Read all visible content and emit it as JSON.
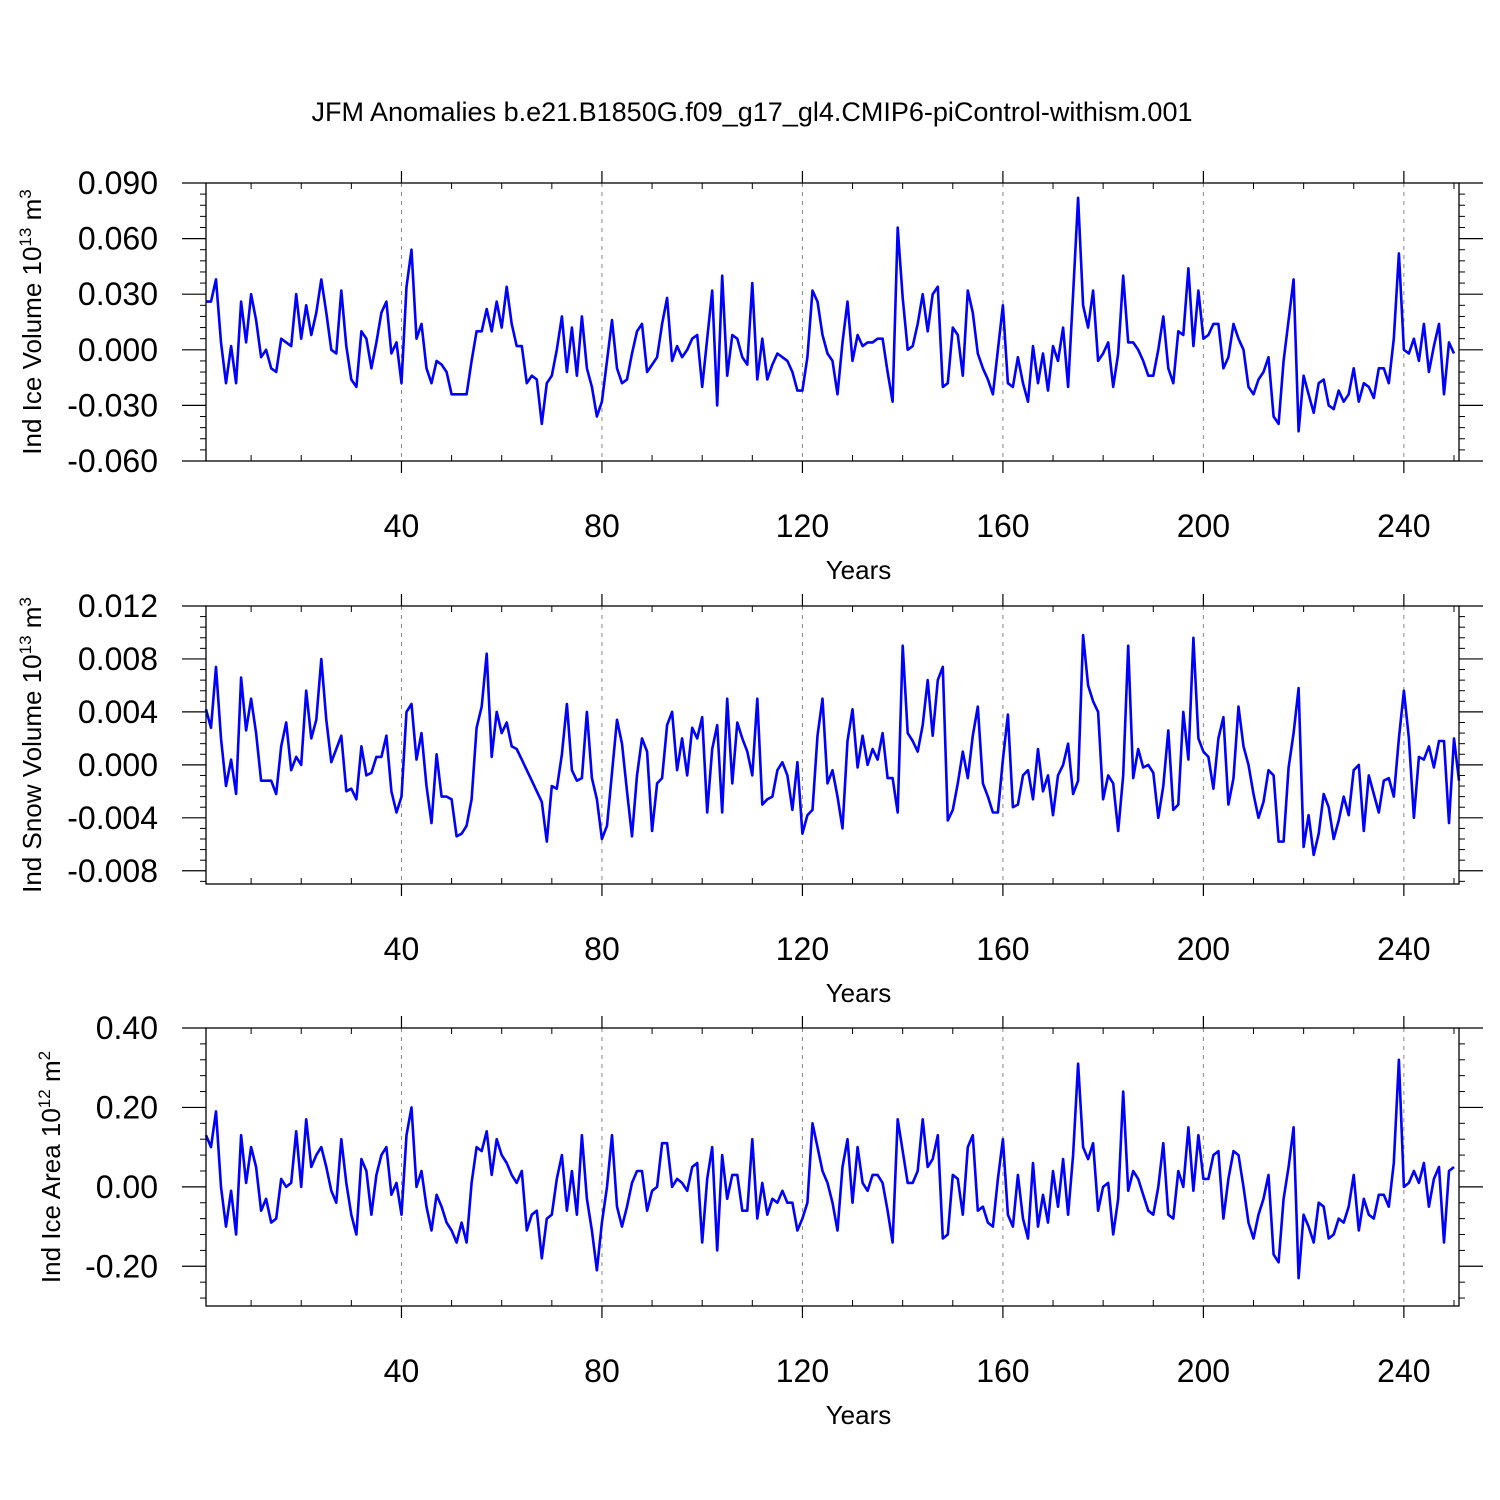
{
  "title": "JFM Anomalies b.e21.B1850G.f09_g17_gl4.CMIP6-piControl-withism.001",
  "chart_data": [
    {
      "type": "line",
      "title": "JFM Anomalies b.e21.B1850G.f09_g17_gl4.CMIP6-piControl-withism.001",
      "xlabel": "Years",
      "ylabel": {
        "main": "Ind Ice Volume 10",
        "exp": "13",
        "unit": " m",
        "unit_exp": "3"
      },
      "xlim": [
        1,
        251
      ],
      "ylim": [
        -0.06,
        0.09
      ],
      "xticks": [
        40,
        80,
        120,
        160,
        200,
        240
      ],
      "xtick_labels": [
        "40",
        "80",
        "120",
        "160",
        "200",
        "240"
      ],
      "yticks": [
        -0.06,
        -0.03,
        0.0,
        0.03,
        0.06,
        0.09
      ],
      "ytick_labels": [
        "-0.060",
        "-0.030",
        "0.000",
        "0.030",
        "0.060",
        "0.090"
      ],
      "grid": "vertical dashed at major x ticks",
      "color": "#0000ff",
      "series": [
        {
          "name": "Ind Ice Volume",
          "values": [
            0.026,
            0.026,
            0.038,
            0.004,
            -0.018,
            0.002,
            -0.018,
            0.026,
            0.004,
            0.03,
            0.016,
            -0.004,
            0.0,
            -0.01,
            -0.012,
            0.006,
            0.004,
            0.002,
            0.03,
            0.006,
            0.024,
            0.008,
            0.02,
            0.038,
            0.02,
            0.0,
            -0.002,
            0.032,
            0.002,
            -0.016,
            -0.02,
            0.01,
            0.006,
            -0.01,
            0.004,
            0.02,
            0.026,
            -0.002,
            0.004,
            -0.018,
            0.034,
            0.054,
            0.006,
            0.014,
            -0.01,
            -0.018,
            -0.006,
            -0.008,
            -0.012,
            -0.024,
            -0.024,
            -0.024,
            -0.024,
            -0.006,
            0.01,
            0.01,
            0.022,
            0.01,
            0.026,
            0.012,
            0.034,
            0.014,
            0.002,
            0.002,
            -0.018,
            -0.014,
            -0.016,
            -0.04,
            -0.018,
            -0.014,
            0.0,
            0.018,
            -0.012,
            0.012,
            -0.014,
            0.018,
            -0.01,
            -0.02,
            -0.036,
            -0.028,
            -0.006,
            0.016,
            -0.01,
            -0.018,
            -0.016,
            -0.002,
            0.01,
            0.014,
            -0.012,
            -0.008,
            -0.004,
            0.014,
            0.028,
            -0.006,
            0.002,
            -0.004,
            0.0,
            0.006,
            0.008,
            -0.02,
            0.006,
            0.032,
            -0.03,
            0.04,
            -0.014,
            0.008,
            0.006,
            -0.004,
            -0.008,
            0.036,
            -0.016,
            0.006,
            -0.016,
            -0.008,
            -0.002,
            -0.004,
            -0.006,
            -0.012,
            -0.022,
            -0.022,
            -0.004,
            0.032,
            0.026,
            0.008,
            -0.002,
            -0.006,
            -0.024,
            0.004,
            0.026,
            -0.006,
            0.008,
            0.002,
            0.004,
            0.004,
            0.006,
            0.006,
            -0.012,
            -0.028,
            0.066,
            0.028,
            0.0,
            0.002,
            0.014,
            0.03,
            0.01,
            0.03,
            0.034,
            -0.02,
            -0.018,
            0.012,
            0.008,
            -0.014,
            0.032,
            0.02,
            -0.002,
            -0.01,
            -0.016,
            -0.024,
            0.0,
            0.024,
            -0.018,
            -0.02,
            -0.004,
            -0.018,
            -0.028,
            0.002,
            -0.018,
            -0.002,
            -0.022,
            0.002,
            -0.006,
            0.012,
            -0.02,
            0.03,
            0.082,
            0.024,
            0.012,
            0.032,
            -0.006,
            -0.002,
            0.004,
            -0.02,
            -0.002,
            0.04,
            0.004,
            0.004,
            0.0,
            -0.006,
            -0.014,
            -0.014,
            0.0,
            0.018,
            -0.01,
            -0.018,
            0.01,
            0.008,
            0.044,
            0.002,
            0.032,
            0.006,
            0.008,
            0.014,
            0.014,
            -0.01,
            -0.004,
            0.014,
            0.006,
            0.0,
            -0.02,
            -0.024,
            -0.016,
            -0.012,
            -0.004,
            -0.036,
            -0.04,
            -0.006,
            0.016,
            0.038,
            -0.044,
            -0.014,
            -0.024,
            -0.034,
            -0.018,
            -0.016,
            -0.03,
            -0.032,
            -0.022,
            -0.028,
            -0.024,
            -0.01,
            -0.028,
            -0.018,
            -0.02,
            -0.026,
            -0.01,
            -0.01,
            -0.018,
            0.006,
            0.052,
            0.0,
            -0.002,
            0.006,
            -0.006,
            0.014,
            -0.012,
            0.002,
            0.014,
            -0.024,
            0.004,
            -0.002
          ]
        }
      ]
    },
    {
      "type": "line",
      "xlabel": "Years",
      "ylabel": {
        "main": "Ind Snow Volume 10",
        "exp": "13",
        "unit": " m",
        "unit_exp": "3"
      },
      "xlim": [
        1,
        251
      ],
      "ylim": [
        -0.009,
        0.012
      ],
      "xticks": [
        40,
        80,
        120,
        160,
        200,
        240
      ],
      "xtick_labels": [
        "40",
        "80",
        "120",
        "160",
        "200",
        "240"
      ],
      "yticks": [
        -0.008,
        -0.004,
        0.0,
        0.004,
        0.008,
        0.012
      ],
      "ytick_labels": [
        "-0.008",
        "-0.004",
        "0.000",
        "0.004",
        "0.008",
        "0.012"
      ],
      "grid": "vertical dashed at major x ticks",
      "color": "#0000ff",
      "series": [
        {
          "name": "Ind Snow Volume",
          "values": [
            0.0042,
            0.0028,
            0.0074,
            0.002,
            -0.0016,
            0.0004,
            -0.0022,
            0.0066,
            0.0026,
            0.005,
            0.0024,
            -0.0012,
            -0.0012,
            -0.0012,
            -0.0022,
            0.0014,
            0.0032,
            -0.0004,
            0.0006,
            0.0,
            0.0056,
            0.002,
            0.0034,
            0.008,
            0.0034,
            0.0002,
            0.0012,
            0.0022,
            -0.002,
            -0.0018,
            -0.0026,
            0.0014,
            -0.0008,
            -0.0006,
            0.0006,
            0.0006,
            0.0022,
            -0.002,
            -0.0036,
            -0.0024,
            0.004,
            0.0046,
            0.0004,
            0.0024,
            -0.0016,
            -0.0044,
            0.0008,
            -0.0024,
            -0.0024,
            -0.0026,
            -0.0054,
            -0.0052,
            -0.0046,
            -0.0026,
            0.0028,
            0.0044,
            0.0084,
            0.0006,
            0.004,
            0.0024,
            0.0032,
            0.0014,
            0.0012,
            0.0004,
            -0.0004,
            -0.0012,
            -0.002,
            -0.0028,
            -0.0058,
            -0.0016,
            -0.0018,
            0.0008,
            0.0046,
            -0.0004,
            -0.0012,
            -0.001,
            0.004,
            -0.001,
            -0.0026,
            -0.0056,
            -0.0046,
            -0.0006,
            0.0034,
            0.0016,
            -0.002,
            -0.0054,
            -0.0008,
            0.002,
            0.001,
            -0.005,
            -0.0014,
            -0.001,
            0.003,
            0.004,
            -0.0004,
            0.002,
            -0.0008,
            0.0028,
            0.002,
            0.0036,
            -0.0036,
            0.0012,
            0.003,
            -0.0036,
            0.005,
            -0.0014,
            0.0032,
            0.002,
            0.001,
            -0.0008,
            0.005,
            -0.003,
            -0.0026,
            -0.0024,
            -0.0004,
            0.0002,
            -0.0008,
            -0.0034,
            0.0002,
            -0.0052,
            -0.0038,
            -0.0034,
            0.0022,
            0.005,
            -0.0014,
            -0.0004,
            -0.0024,
            -0.0048,
            0.0018,
            0.0042,
            -0.0002,
            0.0022,
            0.0,
            0.0012,
            0.0004,
            0.0024,
            -0.001,
            -0.001,
            -0.0036,
            0.009,
            0.0024,
            0.0018,
            0.001,
            0.003,
            0.0064,
            0.0022,
            0.0064,
            0.0074,
            -0.0042,
            -0.0034,
            -0.0014,
            0.001,
            -0.001,
            0.0022,
            0.0044,
            -0.0014,
            -0.0024,
            -0.0036,
            -0.0036,
            0.0004,
            0.0038,
            -0.0032,
            -0.003,
            -0.0008,
            -0.0004,
            -0.0026,
            0.0012,
            -0.002,
            -0.0008,
            -0.0038,
            -0.0008,
            0.0,
            0.0016,
            -0.0022,
            -0.0012,
            0.0098,
            0.006,
            0.0048,
            0.004,
            -0.0026,
            -0.0008,
            -0.0014,
            -0.005,
            -0.0008,
            0.009,
            -0.001,
            0.0012,
            -0.0002,
            0.0,
            -0.0006,
            -0.004,
            -0.0016,
            0.0026,
            -0.0034,
            -0.003,
            0.004,
            0.0004,
            0.0096,
            0.002,
            0.001,
            0.0006,
            -0.0018,
            0.002,
            0.0036,
            -0.003,
            -0.001,
            0.0044,
            0.0014,
            0.0,
            -0.0022,
            -0.004,
            -0.0028,
            -0.0004,
            -0.0008,
            -0.0058,
            -0.0058,
            -0.0002,
            0.0024,
            0.0058,
            -0.0062,
            -0.0038,
            -0.0068,
            -0.0052,
            -0.0022,
            -0.0032,
            -0.0056,
            -0.0042,
            -0.0024,
            -0.0038,
            -0.0004,
            0.0,
            -0.005,
            -0.0008,
            -0.0022,
            -0.0036,
            -0.0012,
            -0.001,
            -0.0024,
            0.002,
            0.0056,
            0.002,
            -0.004,
            0.0006,
            0.0004,
            0.0014,
            -0.0002,
            0.0018,
            0.0018,
            -0.0044,
            0.002,
            -0.0012
          ]
        }
      ]
    },
    {
      "type": "line",
      "xlabel": "Years",
      "ylabel": {
        "main": "Ind Ice Area 10",
        "exp": "12",
        "unit": " m",
        "unit_exp": "2"
      },
      "xlim": [
        1,
        251
      ],
      "ylim": [
        -0.3,
        0.4
      ],
      "xticks": [
        40,
        80,
        120,
        160,
        200,
        240
      ],
      "xtick_labels": [
        "40",
        "80",
        "120",
        "160",
        "200",
        "240"
      ],
      "yticks": [
        -0.2,
        0.0,
        0.2,
        0.4
      ],
      "ytick_labels": [
        "-0.20",
        "0.00",
        "0.20",
        "0.40"
      ],
      "grid": "vertical dashed at major x ticks",
      "color": "#0000ff",
      "series": [
        {
          "name": "Ind Ice Area",
          "values": [
            0.13,
            0.1,
            0.19,
            0.0,
            -0.1,
            -0.01,
            -0.12,
            0.13,
            0.01,
            0.1,
            0.05,
            -0.06,
            -0.03,
            -0.09,
            -0.08,
            0.02,
            0.0,
            0.01,
            0.14,
            0.0,
            0.17,
            0.05,
            0.08,
            0.1,
            0.05,
            -0.01,
            -0.04,
            0.12,
            0.01,
            -0.07,
            -0.12,
            0.07,
            0.04,
            -0.07,
            0.03,
            0.08,
            0.1,
            -0.02,
            0.01,
            -0.07,
            0.13,
            0.2,
            0.0,
            0.04,
            -0.05,
            -0.11,
            -0.02,
            -0.05,
            -0.09,
            -0.11,
            -0.14,
            -0.09,
            -0.14,
            0.01,
            0.1,
            0.09,
            0.14,
            0.03,
            0.12,
            0.08,
            0.06,
            0.03,
            0.01,
            0.04,
            -0.11,
            -0.07,
            -0.06,
            -0.18,
            -0.08,
            -0.07,
            0.02,
            0.08,
            -0.06,
            0.04,
            -0.07,
            0.13,
            -0.03,
            -0.11,
            -0.21,
            -0.09,
            0.0,
            0.13,
            -0.05,
            -0.1,
            -0.05,
            0.01,
            0.04,
            0.04,
            -0.06,
            -0.01,
            0.0,
            0.11,
            0.11,
            0.0,
            0.02,
            0.01,
            -0.01,
            0.05,
            0.06,
            -0.14,
            0.02,
            0.1,
            -0.16,
            0.08,
            -0.03,
            0.03,
            0.03,
            -0.06,
            -0.06,
            0.12,
            -0.08,
            0.01,
            -0.07,
            -0.03,
            -0.04,
            -0.01,
            -0.04,
            -0.04,
            -0.11,
            -0.08,
            -0.04,
            0.16,
            0.1,
            0.04,
            0.01,
            -0.04,
            -0.11,
            0.05,
            0.12,
            -0.04,
            0.1,
            0.01,
            -0.01,
            0.03,
            0.03,
            0.01,
            -0.06,
            -0.14,
            0.17,
            0.09,
            0.01,
            0.01,
            0.04,
            0.17,
            0.05,
            0.07,
            0.13,
            -0.13,
            -0.12,
            0.03,
            0.02,
            -0.07,
            0.1,
            0.13,
            -0.06,
            -0.05,
            -0.09,
            -0.1,
            0.02,
            0.12,
            -0.07,
            -0.1,
            0.03,
            -0.08,
            -0.13,
            0.06,
            -0.1,
            -0.02,
            -0.09,
            0.04,
            -0.05,
            0.07,
            -0.07,
            0.08,
            0.31,
            0.1,
            0.07,
            0.11,
            -0.06,
            0.0,
            0.01,
            -0.12,
            -0.03,
            0.24,
            -0.01,
            0.04,
            0.02,
            -0.02,
            -0.06,
            -0.07,
            0.0,
            0.11,
            -0.07,
            -0.08,
            0.04,
            0.0,
            0.15,
            -0.01,
            0.13,
            0.02,
            0.02,
            0.08,
            0.09,
            -0.08,
            0.02,
            0.09,
            0.08,
            0.0,
            -0.09,
            -0.13,
            -0.07,
            -0.03,
            0.03,
            -0.17,
            -0.19,
            -0.03,
            0.05,
            0.15,
            -0.23,
            -0.07,
            -0.1,
            -0.14,
            -0.04,
            -0.05,
            -0.13,
            -0.12,
            -0.08,
            -0.09,
            -0.05,
            0.03,
            -0.11,
            -0.03,
            -0.07,
            -0.08,
            -0.02,
            -0.02,
            -0.05,
            0.06,
            0.32,
            0.0,
            0.01,
            0.04,
            0.01,
            0.06,
            -0.05,
            0.02,
            0.05,
            -0.14,
            0.04,
            0.05
          ]
        }
      ]
    }
  ]
}
